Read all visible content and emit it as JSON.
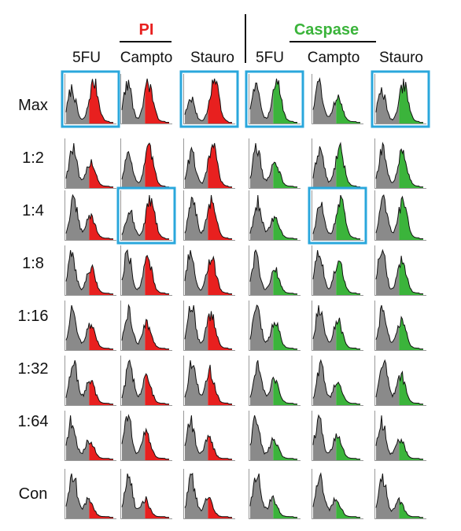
{
  "chart_data": {
    "type": "area",
    "title": "",
    "xlabel": "",
    "ylabel": "",
    "grid": false,
    "groups": [
      {
        "name": "PI",
        "color": "#e8201f",
        "columns": [
          "5FU",
          "Campto",
          "Stauro"
        ]
      },
      {
        "name": "Caspase",
        "color": "#3bb43b",
        "columns": [
          "5FU",
          "Campto",
          "Stauro"
        ]
      }
    ],
    "rows": [
      "Max",
      "1:2",
      "1:4",
      "1:8",
      "1:16",
      "1:32",
      "1:64",
      "Con"
    ],
    "highlight_color": "#2aa7dc",
    "highlighted": [
      {
        "row": "Max",
        "group": "PI",
        "column": "5FU"
      },
      {
        "row": "Max",
        "group": "PI",
        "column": "Stauro"
      },
      {
        "row": "Max",
        "group": "Caspase",
        "column": "5FU"
      },
      {
        "row": "Max",
        "group": "Caspase",
        "column": "Stauro"
      },
      {
        "row": "1:4",
        "group": "PI",
        "column": "Campto"
      },
      {
        "row": "1:4",
        "group": "Caspase",
        "column": "Campto"
      }
    ],
    "histogram_gate": 0.5,
    "positive_fraction": {
      "PI": [
        [
          0.55,
          0.45,
          0.7
        ],
        [
          0.3,
          0.5,
          0.55
        ],
        [
          0.28,
          0.62,
          0.45
        ],
        [
          0.3,
          0.38,
          0.45
        ],
        [
          0.28,
          0.32,
          0.4
        ],
        [
          0.25,
          0.3,
          0.35
        ],
        [
          0.18,
          0.25,
          0.22
        ],
        [
          0.12,
          0.15,
          0.18
        ]
      ],
      "Caspase": [
        [
          0.45,
          0.3,
          0.55
        ],
        [
          0.3,
          0.45,
          0.45
        ],
        [
          0.28,
          0.52,
          0.45
        ],
        [
          0.3,
          0.35,
          0.38
        ],
        [
          0.3,
          0.3,
          0.35
        ],
        [
          0.25,
          0.28,
          0.3
        ],
        [
          0.2,
          0.25,
          0.22
        ],
        [
          0.12,
          0.15,
          0.15
        ]
      ]
    }
  }
}
